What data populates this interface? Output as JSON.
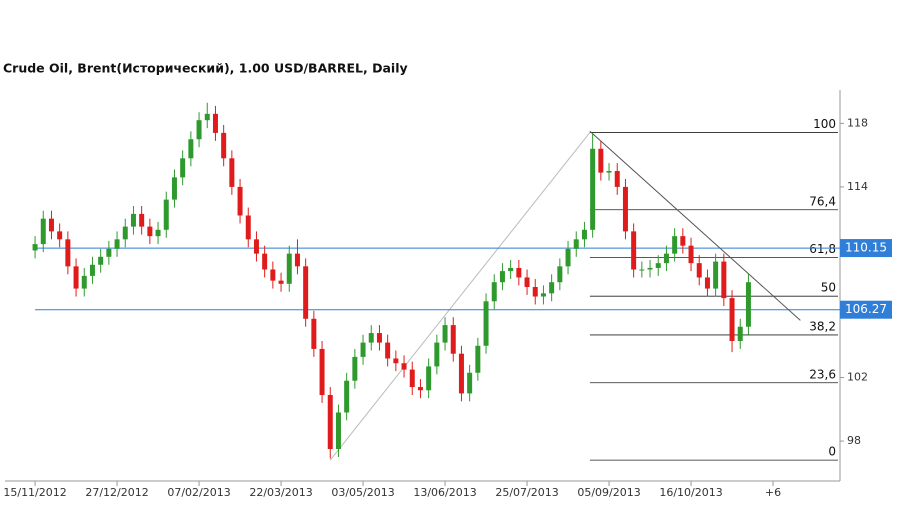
{
  "chart_data": {
    "type": "candlestick",
    "title": "Crude Oil, Brent(Исторический), 1.00 USD/BARREL, Daily",
    "x": [
      0,
      3,
      6,
      9,
      12,
      15,
      18,
      21,
      24,
      27,
      30,
      33,
      36,
      39,
      42,
      45,
      48,
      51,
      54,
      57,
      60,
      63,
      66,
      69,
      72,
      75,
      78,
      81,
      84,
      87,
      90,
      93,
      96,
      99,
      102,
      105,
      108,
      111,
      114,
      117,
      120,
      123,
      126,
      129,
      132,
      135,
      138,
      141,
      144,
      147,
      150,
      153,
      156,
      159,
      162,
      165,
      168,
      171,
      174,
      177,
      180,
      183,
      186,
      189,
      192,
      195,
      198,
      201,
      204,
      207,
      210,
      213,
      216,
      219,
      222,
      225,
      228,
      231,
      234,
      237,
      240,
      243,
      246,
      249,
      252,
      255,
      258,
      261
    ],
    "open": [
      110.0,
      110.4,
      112.0,
      111.2,
      110.7,
      109.0,
      107.6,
      108.4,
      109.1,
      109.6,
      110.1,
      110.7,
      111.5,
      112.3,
      111.5,
      110.9,
      111.3,
      113.2,
      114.6,
      115.8,
      117.0,
      118.2,
      118.6,
      117.4,
      115.8,
      114.0,
      112.2,
      110.7,
      109.8,
      108.8,
      108.1,
      107.9,
      109.8,
      109.0,
      105.7,
      103.8,
      100.9,
      97.5,
      99.8,
      101.8,
      103.3,
      104.2,
      104.8,
      104.2,
      103.2,
      102.9,
      102.5,
      101.4,
      101.2,
      102.7,
      104.2,
      105.3,
      103.5,
      101.0,
      102.3,
      104.0,
      106.8,
      108.0,
      108.7,
      108.9,
      108.3,
      107.7,
      107.1,
      107.3,
      108.0,
      109.0,
      110.1,
      110.7,
      111.3,
      116.4,
      114.9,
      115.0,
      114.0,
      111.2,
      108.8,
      108.8,
      108.9,
      109.2,
      109.8,
      110.9,
      110.3,
      109.2,
      108.3,
      107.6,
      109.3,
      107.0,
      104.3,
      105.2
    ],
    "high": [
      110.9,
      112.5,
      112.5,
      111.7,
      111.2,
      109.5,
      108.9,
      109.6,
      110.1,
      110.6,
      111.2,
      112.0,
      112.8,
      112.8,
      112.0,
      111.8,
      113.7,
      115.1,
      116.3,
      117.5,
      118.7,
      119.3,
      119.1,
      117.9,
      116.3,
      114.5,
      112.7,
      111.2,
      110.3,
      109.3,
      108.6,
      110.3,
      110.7,
      109.5,
      106.2,
      104.3,
      101.4,
      100.3,
      102.3,
      103.8,
      104.7,
      105.3,
      105.3,
      104.7,
      103.7,
      103.4,
      103.0,
      101.9,
      103.2,
      104.7,
      105.8,
      105.8,
      104.0,
      102.8,
      104.5,
      107.3,
      108.5,
      109.2,
      109.4,
      109.4,
      108.8,
      108.2,
      107.8,
      108.5,
      109.5,
      110.6,
      111.2,
      111.8,
      117.4,
      116.9,
      115.5,
      115.5,
      114.5,
      111.7,
      109.3,
      109.4,
      109.7,
      110.3,
      111.4,
      111.4,
      110.8,
      109.7,
      108.8,
      109.8,
      109.8,
      107.5,
      105.7,
      108.5
    ],
    "low": [
      109.5,
      109.9,
      110.7,
      110.2,
      108.5,
      107.1,
      107.1,
      107.9,
      108.6,
      109.1,
      109.6,
      110.2,
      111.0,
      111.0,
      110.4,
      110.4,
      110.8,
      112.7,
      114.1,
      115.3,
      116.5,
      117.7,
      116.9,
      115.3,
      113.5,
      111.7,
      110.2,
      109.3,
      108.3,
      107.6,
      107.4,
      107.4,
      108.5,
      105.2,
      103.3,
      100.4,
      96.9,
      97.0,
      99.3,
      101.3,
      102.8,
      103.7,
      103.7,
      102.7,
      102.4,
      102.0,
      100.9,
      100.7,
      100.7,
      102.2,
      103.7,
      103.0,
      100.5,
      100.5,
      101.8,
      103.5,
      106.3,
      107.5,
      108.2,
      107.8,
      107.2,
      106.6,
      106.6,
      106.8,
      107.5,
      108.5,
      109.6,
      110.2,
      110.8,
      114.4,
      114.4,
      113.5,
      110.7,
      108.3,
      108.3,
      108.3,
      108.4,
      108.7,
      109.3,
      109.8,
      108.7,
      107.8,
      107.1,
      107.1,
      106.5,
      103.6,
      103.8,
      104.7
    ],
    "close": [
      110.4,
      112.0,
      111.2,
      110.7,
      109.0,
      107.6,
      108.4,
      109.1,
      109.6,
      110.1,
      110.7,
      111.5,
      112.3,
      111.5,
      110.9,
      111.3,
      113.2,
      114.6,
      115.8,
      117.0,
      118.2,
      118.6,
      117.4,
      115.8,
      114.0,
      112.2,
      110.7,
      109.8,
      108.8,
      108.1,
      107.9,
      109.8,
      109.0,
      105.7,
      103.8,
      100.9,
      97.5,
      99.8,
      101.8,
      103.3,
      104.2,
      104.8,
      104.2,
      103.2,
      102.9,
      102.5,
      101.4,
      101.2,
      102.7,
      104.2,
      105.3,
      103.5,
      101.0,
      102.3,
      104.0,
      106.8,
      108.0,
      108.7,
      108.9,
      108.3,
      107.7,
      107.1,
      107.3,
      108.0,
      109.0,
      110.1,
      110.7,
      111.3,
      116.4,
      114.9,
      115.0,
      114.0,
      111.2,
      108.8,
      108.8,
      108.9,
      109.2,
      109.8,
      110.9,
      110.3,
      109.2,
      108.3,
      107.6,
      109.3,
      107.0,
      104.3,
      105.2,
      108.0
    ],
    "up_color": "#2e9a2e",
    "down_color": "#e01b1b",
    "xlim": [
      -11,
      294.5
    ],
    "xticks": [
      {
        "value": 0,
        "label": "15/11/2012"
      },
      {
        "value": 30,
        "label": "27/12/2012"
      },
      {
        "value": 60,
        "label": "07/02/2013"
      },
      {
        "value": 90,
        "label": "22/03/2013"
      },
      {
        "value": 120,
        "label": "03/05/2013"
      },
      {
        "value": 150,
        "label": "13/06/2013"
      },
      {
        "value": 180,
        "label": "25/07/2013"
      },
      {
        "value": 210,
        "label": "05/09/2013"
      },
      {
        "value": 240,
        "label": "16/10/2013"
      },
      {
        "value": 270,
        "label": "+6"
      }
    ],
    "ylim": [
      95.55,
      120.1
    ],
    "yticks": [
      98,
      102,
      114,
      118
    ],
    "price_lines": [
      {
        "value": 110.15,
        "color": "#2f7ed8"
      },
      {
        "value": 106.27,
        "color": "#2f7ed8"
      }
    ],
    "fib": {
      "color": "#222222",
      "from": {
        "x": 108,
        "y": 96.8
      },
      "to": {
        "x": 203,
        "y": 117.43
      },
      "levels": [
        {
          "label": "100",
          "value": 117.43
        },
        {
          "label": "76,4",
          "value": 112.56
        },
        {
          "label": "61,8",
          "value": 109.55
        },
        {
          "label": "50",
          "value": 107.12
        },
        {
          "label": "38,2",
          "value": 104.68
        },
        {
          "label": "23,6",
          "value": 101.67
        },
        {
          "label": "0",
          "value": 96.8
        }
      ]
    },
    "trend_line": {
      "x": [
        203,
        280
      ],
      "y": [
        117.5,
        105.6
      ]
    }
  }
}
